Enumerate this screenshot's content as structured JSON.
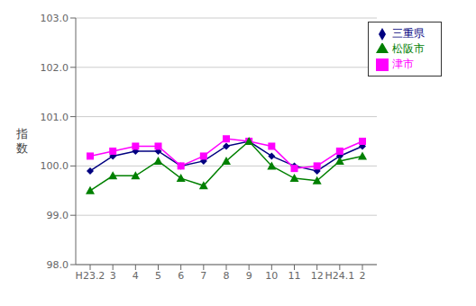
{
  "chart_data": {
    "type": "line",
    "categories": [
      "H23.2",
      "3",
      "4",
      "5",
      "6",
      "7",
      "8",
      "9",
      "10",
      "11",
      "12",
      "H24.1",
      "2"
    ],
    "series": [
      {
        "name": "三重県",
        "color": "#000080",
        "marker": "diamond",
        "values": [
          99.9,
          100.2,
          100.3,
          100.3,
          100.0,
          100.1,
          100.4,
          100.5,
          100.2,
          100.0,
          99.9,
          100.2,
          100.4
        ]
      },
      {
        "name": "津市",
        "color": "#ff00ff",
        "marker": "square",
        "values": [
          100.2,
          100.3,
          100.4,
          100.4,
          100.0,
          100.2,
          100.55,
          100.5,
          100.4,
          99.95,
          100.0,
          100.3,
          100.5
        ]
      },
      {
        "name": "松阪市",
        "color": "#008000",
        "marker": "triangle",
        "values": [
          99.5,
          99.8,
          99.8,
          100.1,
          99.75,
          99.6,
          100.1,
          100.5,
          100.0,
          99.75,
          99.7,
          100.1,
          100.2
        ]
      }
    ],
    "ylabel": "指\n数",
    "ylim": [
      98.0,
      103.0
    ],
    "yticks": [
      {
        "value": 98.0,
        "label": "98.0"
      },
      {
        "value": 99.0,
        "label": "99.0"
      },
      {
        "value": 100.0,
        "label": "100.0"
      },
      {
        "value": 101.0,
        "label": "101.0"
      },
      {
        "value": 102.0,
        "label": "102.0"
      },
      {
        "value": 103.0,
        "label": "103.0"
      }
    ],
    "grid": true,
    "legend": "upper right"
  }
}
